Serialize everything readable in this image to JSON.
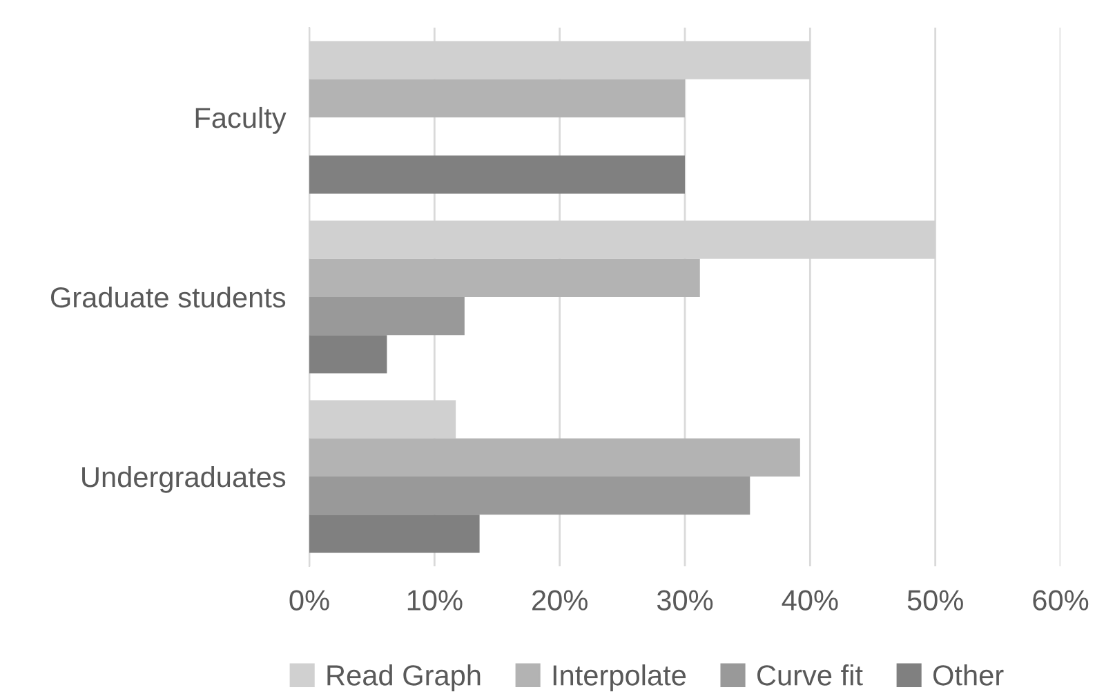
{
  "chart_data": {
    "type": "bar",
    "orientation": "horizontal",
    "categories": [
      "Faculty",
      "Graduate students",
      "Undergraduates"
    ],
    "series": [
      {
        "name": "Read Graph",
        "color": "#d0d0d0",
        "values": [
          40,
          50,
          11.7
        ]
      },
      {
        "name": "Interpolate",
        "color": "#b3b3b3",
        "values": [
          30,
          31.2,
          39.2
        ]
      },
      {
        "name": "Curve fit",
        "color": "#999999",
        "values": [
          0,
          12.4,
          35.2
        ]
      },
      {
        "name": "Other",
        "color": "#808080",
        "values": [
          30,
          6.2,
          13.6
        ]
      }
    ],
    "xlim": [
      0,
      60
    ],
    "xticks": [
      {
        "value": 0,
        "label": "0%"
      },
      {
        "value": 10,
        "label": "10%"
      },
      {
        "value": 20,
        "label": "20%"
      },
      {
        "value": 30,
        "label": "30%"
      },
      {
        "value": 40,
        "label": "40%"
      },
      {
        "value": 50,
        "label": "50%"
      },
      {
        "value": 60,
        "label": "60%"
      }
    ],
    "grid": "x",
    "legend": "bottom"
  }
}
